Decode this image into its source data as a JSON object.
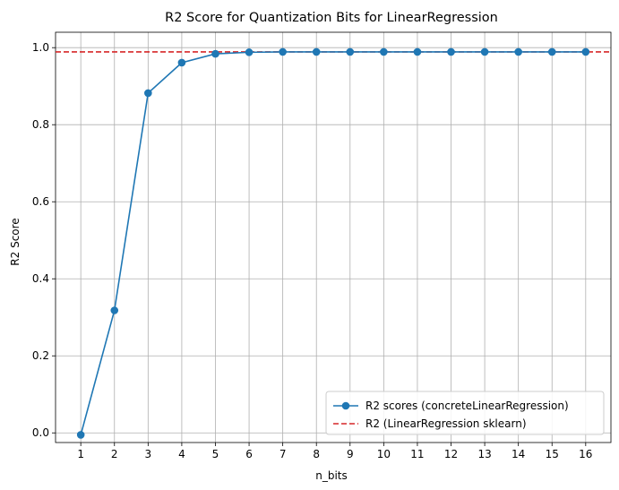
{
  "chart_data": {
    "type": "line",
    "title": "R2 Score for Quantization Bits for LinearRegression",
    "xlabel": "n_bits",
    "ylabel": "R2 Score",
    "x": [
      1,
      2,
      3,
      4,
      5,
      6,
      7,
      8,
      9,
      10,
      11,
      12,
      13,
      14,
      15,
      16
    ],
    "xticks": [
      "1",
      "2",
      "3",
      "4",
      "5",
      "6",
      "7",
      "8",
      "9",
      "10",
      "11",
      "12",
      "13",
      "14",
      "15",
      "16"
    ],
    "yticks": [
      "0.0",
      "0.2",
      "0.4",
      "0.6",
      "0.8",
      "1.0"
    ],
    "xlim": [
      0.25,
      16.75
    ],
    "ylim": [
      -0.025,
      1.04
    ],
    "grid": true,
    "legend_position": "lower-right",
    "series": [
      {
        "name": "R2 scores (concreteLinearRegression)",
        "color": "#1f77b4",
        "marker": "circle",
        "values": [
          -0.005,
          0.318,
          0.882,
          0.961,
          0.984,
          0.988,
          0.989,
          0.989,
          0.989,
          0.989,
          0.989,
          0.989,
          0.989,
          0.989,
          0.989,
          0.989
        ]
      }
    ],
    "reference_lines": [
      {
        "name": "R2 (LinearRegression sklearn)",
        "color": "#d62728",
        "style": "dashed",
        "y": 0.989
      }
    ]
  }
}
